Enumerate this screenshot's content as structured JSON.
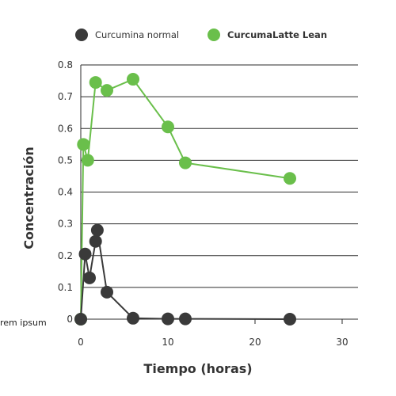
{
  "colors": {
    "series_normal": "#3a3a3a",
    "series_lean": "#6abf4b",
    "grid": "#2b2b2b",
    "axis": "#2b2b2b",
    "text": "#333333",
    "background": "#ffffff"
  },
  "side_note": "rem ipsum",
  "chart_data": {
    "type": "line",
    "title": "",
    "xlabel": "Tiempo (horas)",
    "ylabel": "Concentración",
    "xlim": [
      0,
      30
    ],
    "ylim": [
      0,
      0.8
    ],
    "x_ticks": [
      0,
      10,
      20,
      30
    ],
    "y_ticks": [
      0,
      0.1,
      0.2,
      0.3,
      0.4,
      0.5,
      0.6,
      0.7,
      0.8
    ],
    "x_tick_labels": [
      "0",
      "10",
      "20",
      "30"
    ],
    "y_tick_labels": [
      "0",
      "0.1",
      "0.2",
      "0.3",
      "0.4",
      "0.5",
      "0.6",
      "0.7",
      "0.8"
    ],
    "grid": "horizontal",
    "legend_position": "top",
    "series": [
      {
        "name": "Curcumina normal",
        "color": "#3a3a3a",
        "points": [
          {
            "x": 0,
            "y": 0
          },
          {
            "x": 0.5,
            "y": 0.205
          },
          {
            "x": 1,
            "y": 0.13
          },
          {
            "x": 1.7,
            "y": 0.245
          },
          {
            "x": 1.9,
            "y": 0.28
          },
          {
            "x": 3,
            "y": 0.085
          },
          {
            "x": 6,
            "y": 0.003
          },
          {
            "x": 10,
            "y": 0.001
          },
          {
            "x": 12,
            "y": 0.001
          },
          {
            "x": 24,
            "y": 0
          }
        ]
      },
      {
        "name": "CurcumaLatte Lean",
        "color": "#6abf4b",
        "points": [
          {
            "x": 0,
            "y": 0
          },
          {
            "x": 0.3,
            "y": 0.55
          },
          {
            "x": 0.8,
            "y": 0.5
          },
          {
            "x": 1.7,
            "y": 0.745
          },
          {
            "x": 3,
            "y": 0.72
          },
          {
            "x": 6,
            "y": 0.755
          },
          {
            "x": 10,
            "y": 0.605
          },
          {
            "x": 12,
            "y": 0.492
          },
          {
            "x": 24,
            "y": 0.443
          }
        ]
      }
    ]
  }
}
